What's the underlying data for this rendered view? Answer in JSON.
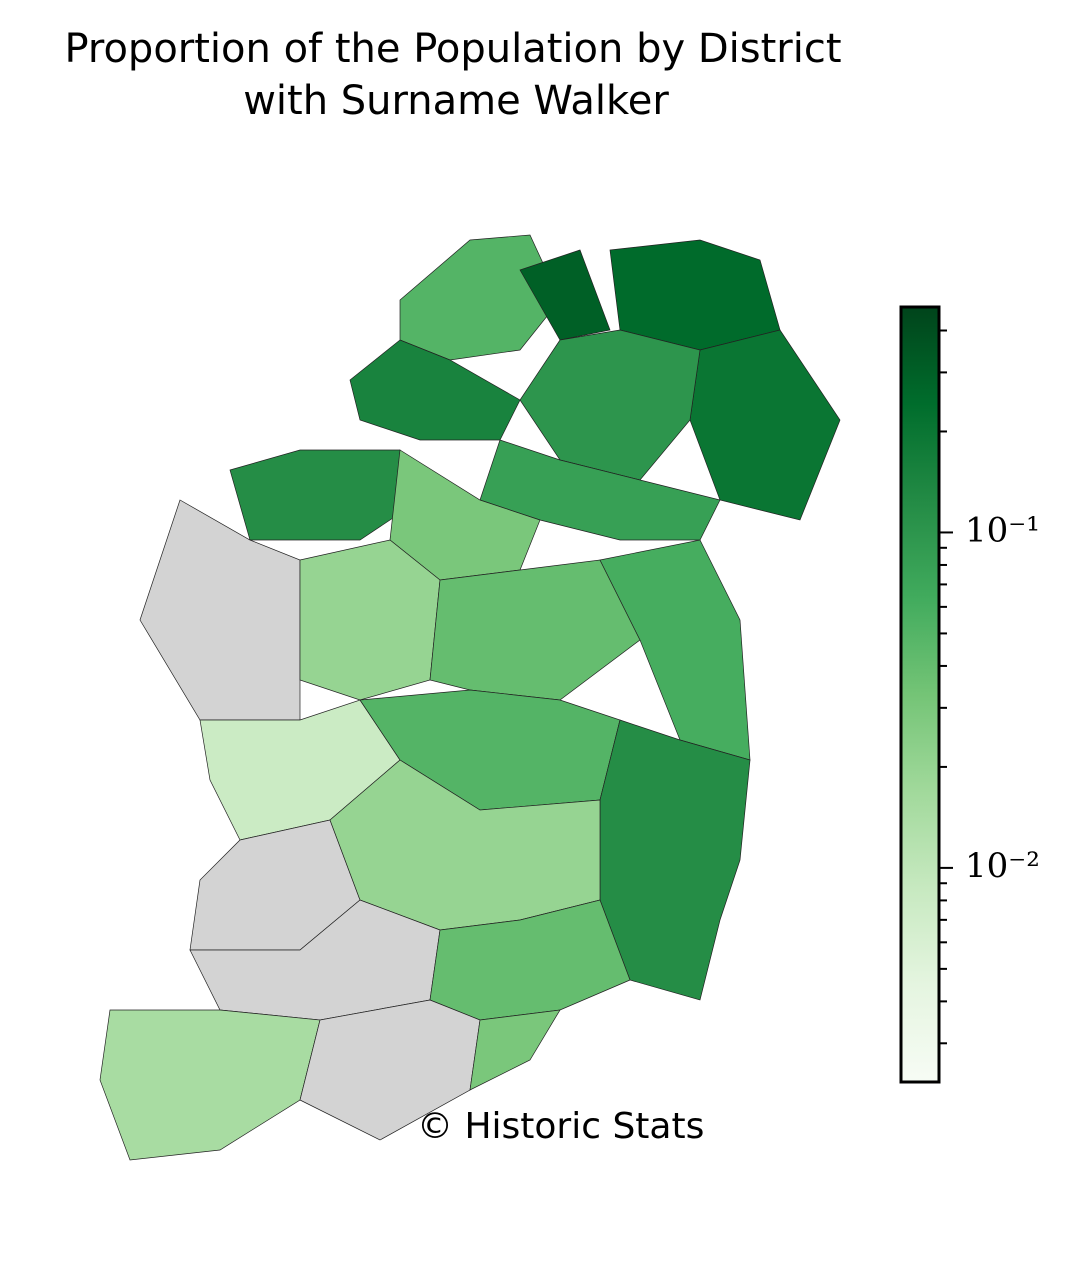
{
  "chart_data": {
    "type": "choropleth",
    "title": [
      "Proportion of the Population by District",
      "with Surname Walker"
    ],
    "credit": "© Historic Stats",
    "regions": {
      "values": [
        0.05,
        0.3,
        0.25,
        0.2,
        0.1,
        0.15,
        0.08,
        0.12,
        0.03,
        null,
        0.02,
        0.04,
        0.06,
        0.008,
        0.05,
        0.12,
        null,
        0.02,
        null,
        0.04,
        0.015,
        null,
        0.03
      ]
    },
    "colormap": [
      "#f7fcf5",
      "#e5f5e0",
      "#c7e9c0",
      "#a1d99b",
      "#74c476",
      "#41ab5d",
      "#238b45",
      "#006d2c",
      "#00441b"
    ],
    "missing_color": "#d3d3d3",
    "log_scale": true,
    "clim": [
      0.0023,
      0.47
    ],
    "cticks": [
      {
        "value": 0.01,
        "label": "10⁻²"
      },
      {
        "value": 0.1,
        "label": "10⁻¹"
      }
    ],
    "cminor_ticks": [
      0.003,
      0.004,
      0.005,
      0.006,
      0.007,
      0.008,
      0.009,
      0.02,
      0.03,
      0.04,
      0.05,
      0.06,
      0.07,
      0.08,
      0.09,
      0.2,
      0.3,
      0.4
    ]
  }
}
